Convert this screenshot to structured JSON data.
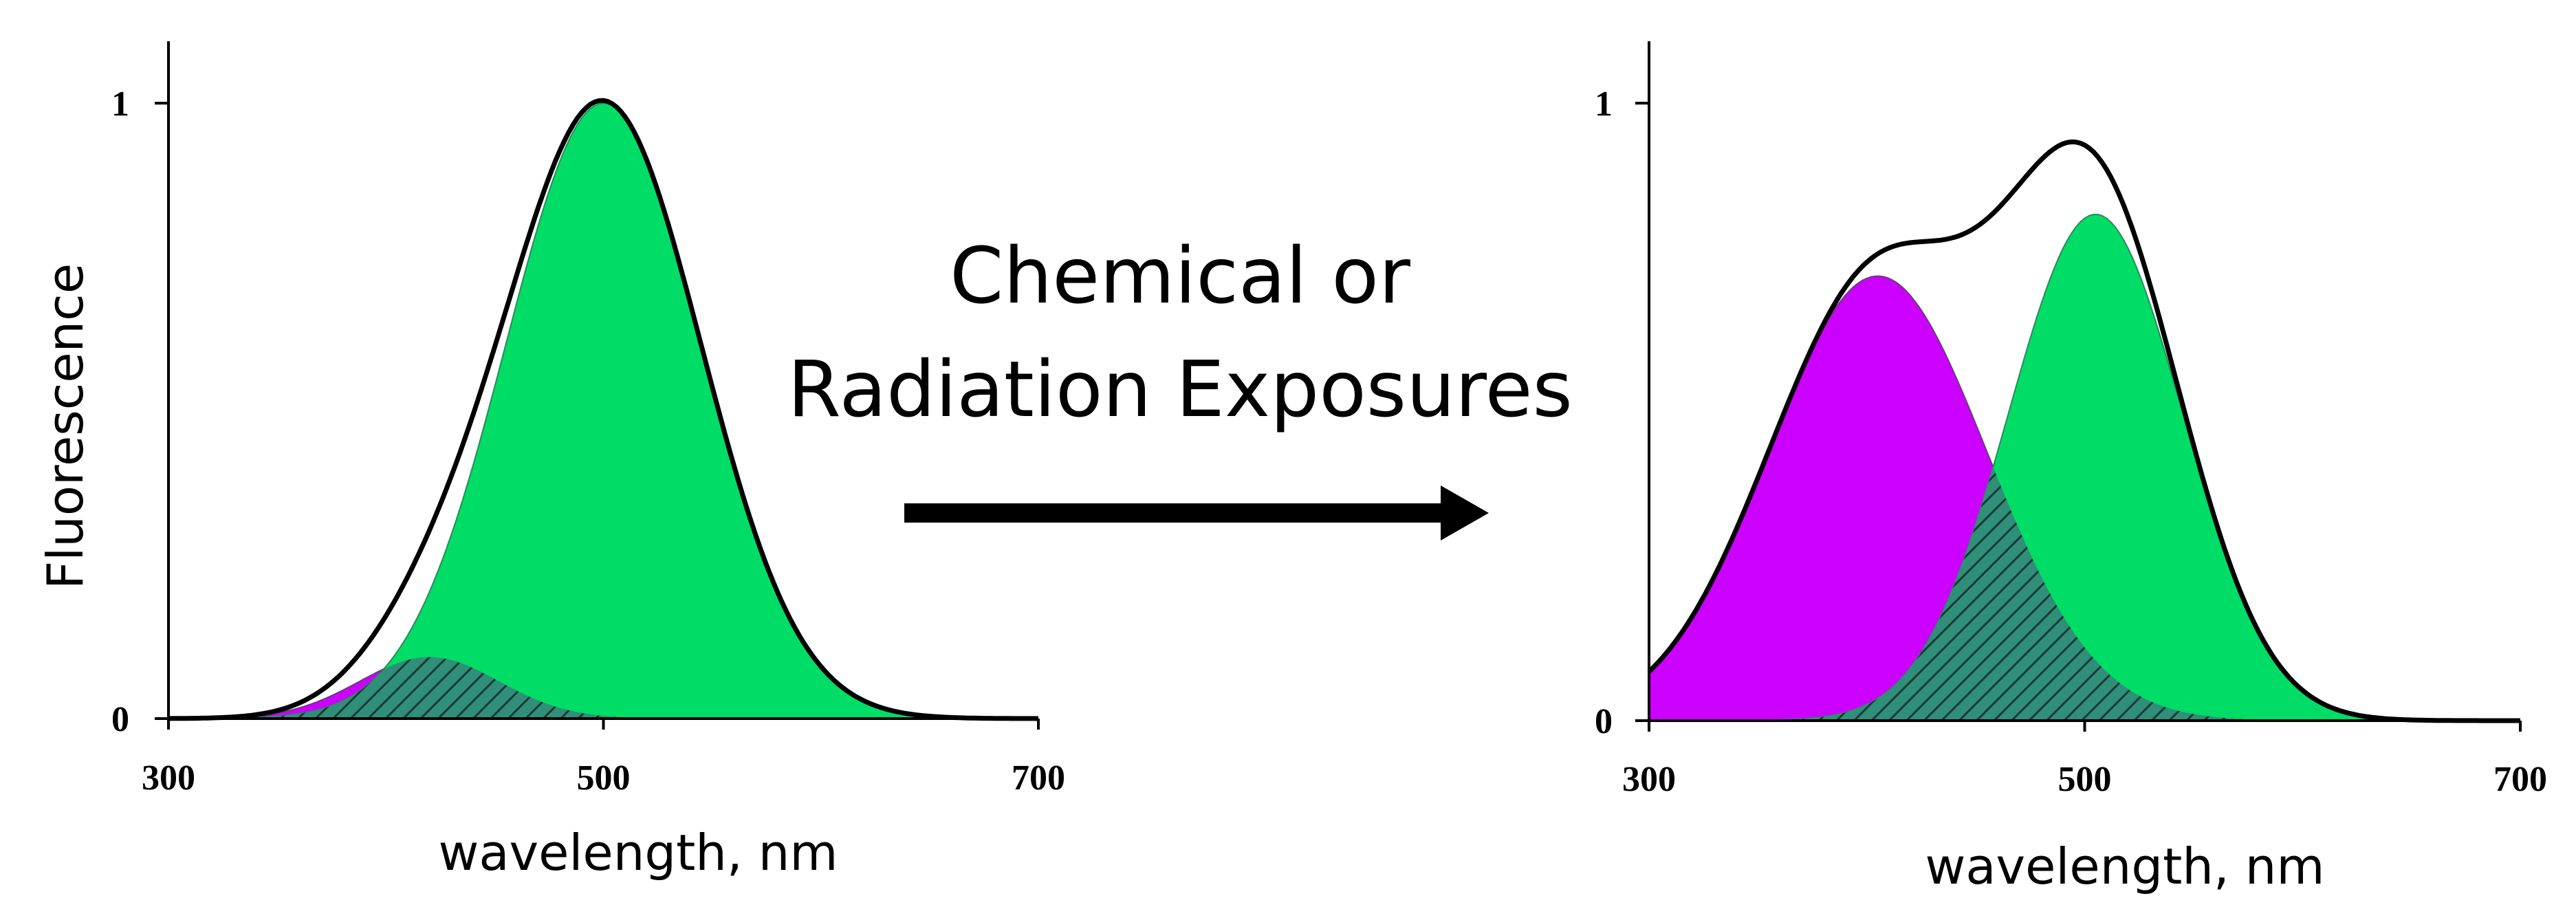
{
  "chart_data": [
    {
      "type": "area",
      "ylabel": "Fluorescence",
      "xlabel": "wavelength, nm",
      "xlim": [
        300,
        700
      ],
      "ylim": [
        0,
        1
      ],
      "xticks": [
        "300",
        "500",
        "700"
      ],
      "yticks": [
        "0",
        "1"
      ],
      "legend": "none",
      "grid": false,
      "series": [
        {
          "kind": "gaussian-fill",
          "color": "#cc00ff",
          "center": 420,
          "amplitude": 0.1,
          "sigma": 32
        },
        {
          "kind": "gaussian-fill",
          "color": "#00dd66",
          "center": 500,
          "amplitude": 1.0,
          "sigma": 45
        },
        {
          "kind": "sum-outline",
          "color": "#000000"
        }
      ]
    },
    {
      "type": "area",
      "ylabel": "",
      "xlabel": "wavelength, nm",
      "xlim": [
        300,
        700
      ],
      "ylim": [
        0,
        1
      ],
      "xticks": [
        "300",
        "500",
        "700"
      ],
      "yticks": [
        "0",
        "1"
      ],
      "legend": "none",
      "grid": false,
      "series": [
        {
          "kind": "gaussian-fill",
          "color": "#cc00ff",
          "center": 405,
          "amplitude": 0.72,
          "sigma": 50
        },
        {
          "kind": "gaussian-fill",
          "color": "#00dd66",
          "center": 505,
          "amplitude": 0.82,
          "sigma": 40
        },
        {
          "kind": "sum-outline",
          "color": "#000000"
        }
      ]
    }
  ],
  "arrow": {
    "line1": "Chemical or",
    "line2": "Radiation Exposures"
  },
  "colors": {
    "violet": "#cc00ff",
    "green": "#00dd66",
    "overlap": "#2f8f78",
    "hatch": "#1a3a34"
  }
}
